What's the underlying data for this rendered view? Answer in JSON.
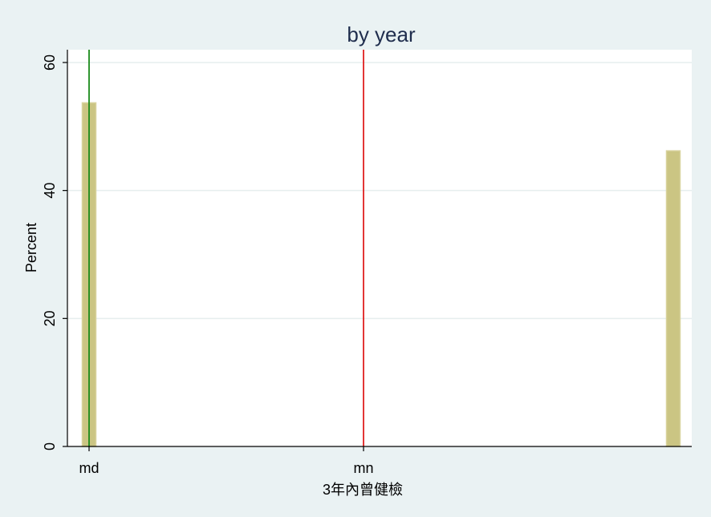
{
  "chart_data": {
    "type": "bar",
    "title": "by year",
    "xlabel": "3年內曾健檢",
    "ylabel": "Percent",
    "ylim": [
      0,
      62
    ],
    "yticks": [
      0,
      20,
      40,
      60
    ],
    "xticks": [
      "md",
      "mn"
    ],
    "series": [
      {
        "category": "md",
        "value": 53.7
      },
      {
        "category": "",
        "value": 46.2
      }
    ],
    "reference_lines": [
      {
        "at": "md",
        "color": "#1a8a1a"
      },
      {
        "at": "mn",
        "color": "#e01f1f"
      }
    ],
    "grid": true,
    "colors": {
      "bar_fill": "#cbc583",
      "bar_stroke": "#d8d29c",
      "background": "#eaf2f3",
      "plot_area": "#ffffff",
      "gridline": "#e6eeee"
    }
  }
}
